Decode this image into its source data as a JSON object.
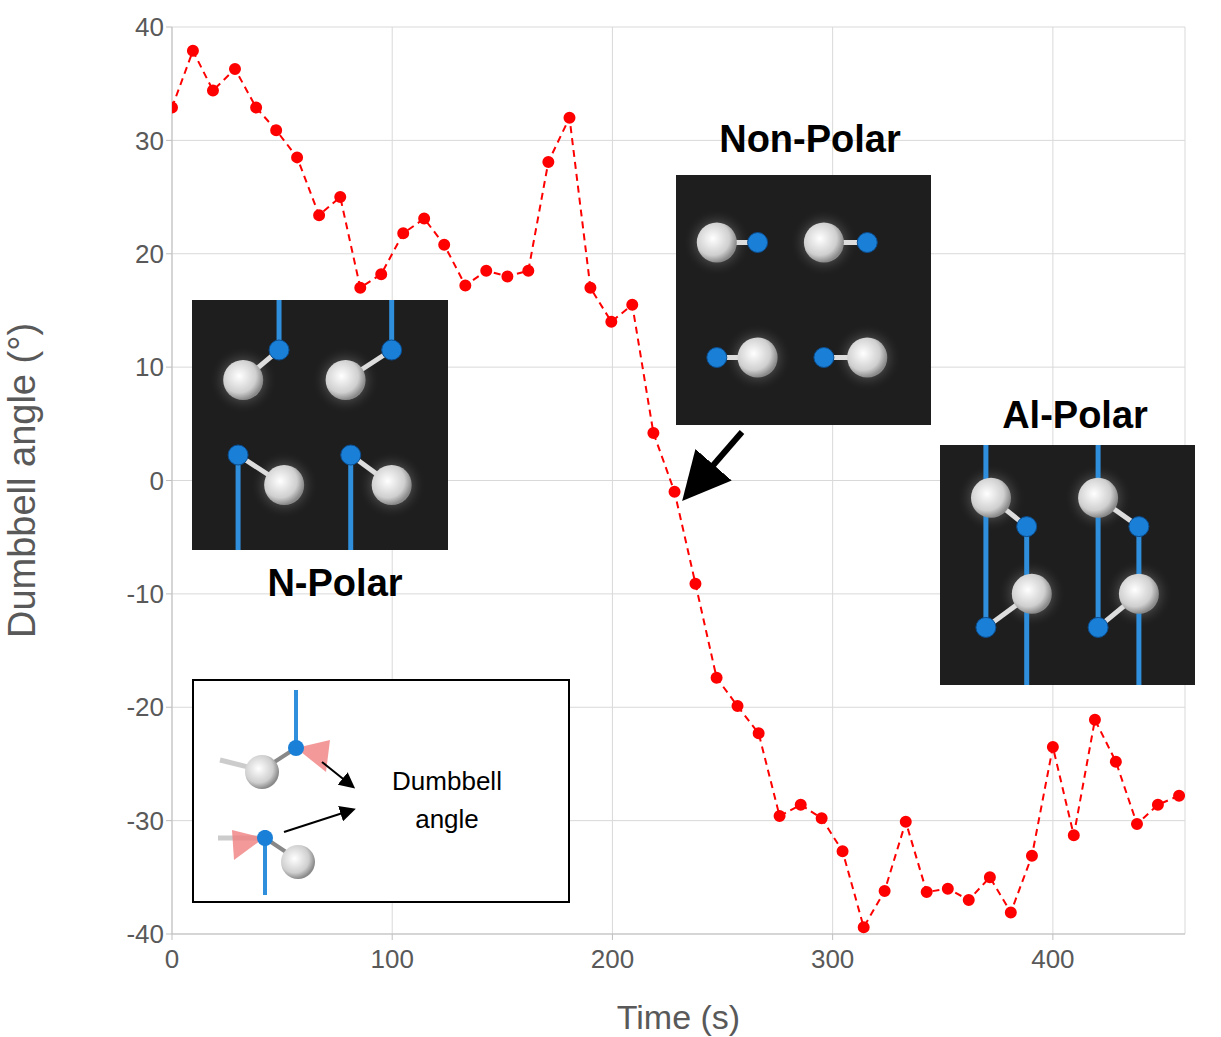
{
  "chart_data": {
    "type": "line",
    "x_label": "Time (s)",
    "y_label": "Dumbbell angle (°)",
    "x": [
      0,
      9.5,
      18.6,
      28.6,
      38.2,
      47.3,
      56.8,
      66.8,
      76.4,
      85.5,
      95,
      105,
      114.5,
      123.6,
      133.2,
      142.7,
      152.3,
      161.8,
      170.9,
      180.5,
      190,
      199.5,
      209,
      218.6,
      228.2,
      237.7,
      247.3,
      256.8,
      266.4,
      275.9,
      285.5,
      295,
      304.5,
      314.1,
      323.6,
      333.2,
      342.7,
      352.3,
      361.8,
      371.4,
      380.9,
      390.5,
      400,
      409.5,
      419.1,
      428.6,
      438.2,
      447.7,
      457.3
    ],
    "values": [
      32.9,
      37.9,
      34.4,
      36.3,
      32.9,
      30.9,
      28.5,
      23.4,
      25.0,
      17.0,
      18.2,
      21.8,
      23.1,
      20.8,
      17.2,
      18.5,
      18.0,
      18.5,
      28.1,
      32.0,
      17.0,
      14.0,
      15.5,
      4.2,
      -1.0,
      -9.1,
      -17.4,
      -19.9,
      -22.3,
      -29.6,
      -28.6,
      -29.8,
      -32.7,
      -39.4,
      -36.2,
      -30.1,
      -36.3,
      -36.0,
      -37.0,
      -35.0,
      -38.1,
      -33.1,
      -23.5,
      -31.3,
      -21.1,
      -24.8,
      -30.3,
      -28.6,
      -27.8
    ],
    "color": "#ff0000",
    "marker": "circle",
    "line_style": "dashed",
    "xlim": [
      0,
      460
    ],
    "ylim": [
      -40,
      40
    ],
    "xticks": [
      0,
      100,
      200,
      300,
      400
    ],
    "yticks": [
      -40,
      -30,
      -20,
      -10,
      0,
      10,
      20,
      30,
      40
    ],
    "grid": true,
    "annotations": [
      "N-Polar",
      "Non-Polar",
      "Al-Polar",
      "Dumbbell angle"
    ]
  }
}
